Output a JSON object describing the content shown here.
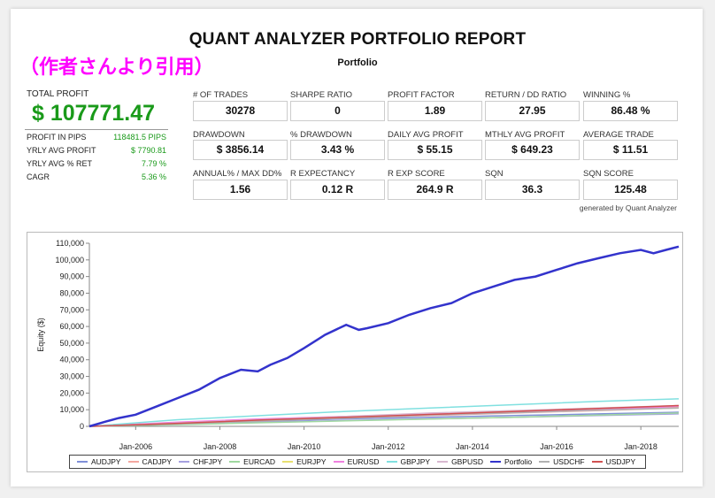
{
  "header": {
    "title": "QUANT ANALYZER PORTFOLIO REPORT",
    "subtitle": "Portfolio",
    "quote_note": "（作者さんより引用）"
  },
  "summary": {
    "total_label": "TOTAL PROFIT",
    "total_value": "$ 107771.47",
    "rows": [
      {
        "label": "PROFIT IN PIPS",
        "value": "118481.5 PIPS"
      },
      {
        "label": "YRLY AVG PROFIT",
        "value": "$ 7790.81"
      },
      {
        "label": "YRLY AVG % RET",
        "value": "7.79 %"
      },
      {
        "label": "CAGR",
        "value": "5.36 %"
      }
    ]
  },
  "stats": [
    [
      {
        "label": "# OF TRADES",
        "value": "30278"
      },
      {
        "label": "SHARPE RATIO",
        "value": "0"
      },
      {
        "label": "PROFIT FACTOR",
        "value": "1.89"
      },
      {
        "label": "RETURN / DD RATIO",
        "value": "27.95"
      },
      {
        "label": "WINNING %",
        "value": "86.48 %"
      }
    ],
    [
      {
        "label": "DRAWDOWN",
        "value": "$ 3856.14"
      },
      {
        "label": "% DRAWDOWN",
        "value": "3.43 %"
      },
      {
        "label": "DAILY AVG PROFIT",
        "value": "$ 55.15"
      },
      {
        "label": "MTHLY AVG PROFIT",
        "value": "$ 649.23"
      },
      {
        "label": "AVERAGE TRADE",
        "value": "$ 11.51"
      }
    ],
    [
      {
        "label": "ANNUAL% / MAX DD%",
        "value": "1.56"
      },
      {
        "label": "R EXPECTANCY",
        "value": "0.12 R"
      },
      {
        "label": "R EXP SCORE",
        "value": "264.9 R"
      },
      {
        "label": "SQN",
        "value": "36.3"
      },
      {
        "label": "SQN SCORE",
        "value": "125.48"
      }
    ]
  ],
  "generated_by": "generated by Quant Analyzer",
  "chart_data": {
    "type": "line",
    "ylabel": "Equity ($)",
    "xlabel": "",
    "ylim": [
      0,
      110000
    ],
    "xlim": [
      2004.9,
      2018.9
    ],
    "y_ticks": [
      0,
      10000,
      20000,
      30000,
      40000,
      50000,
      60000,
      70000,
      80000,
      90000,
      100000,
      110000
    ],
    "y_tick_labels": [
      "0",
      "10,000",
      "20,000",
      "30,000",
      "40,000",
      "50,000",
      "60,000",
      "70,000",
      "80,000",
      "90,000",
      "100,000",
      "110,000"
    ],
    "x_ticks": [
      2006,
      2008,
      2010,
      2012,
      2014,
      2016,
      2018
    ],
    "x_tick_labels": [
      "Jan-2006",
      "Jan-2008",
      "Jan-2010",
      "Jan-2012",
      "Jan-2014",
      "Jan-2016",
      "Jan-2018"
    ],
    "grid": false,
    "legend_position": "bottom",
    "series": [
      {
        "name": "AUDJPY",
        "color": "#7f8fd8",
        "x": [
          2004.9,
          2007,
          2009,
          2011,
          2013,
          2015,
          2017,
          2018.9
        ],
        "y": [
          0,
          1500,
          3000,
          4500,
          5500,
          6500,
          7500,
          8500
        ]
      },
      {
        "name": "CADJPY",
        "color": "#f4a7a0",
        "x": [
          2004.9,
          2007,
          2009,
          2011,
          2013,
          2015,
          2017,
          2018.9
        ],
        "y": [
          0,
          1800,
          3500,
          5000,
          6500,
          8000,
          9500,
          11000
        ]
      },
      {
        "name": "CHFJPY",
        "color": "#a5a0e0",
        "x": [
          2004.9,
          2007,
          2009,
          2011,
          2013,
          2015,
          2017,
          2018.9
        ],
        "y": [
          0,
          1200,
          2500,
          3500,
          4500,
          5500,
          6500,
          7500
        ]
      },
      {
        "name": "EURCAD",
        "color": "#9fd89f",
        "x": [
          2004.9,
          2007,
          2009,
          2011,
          2013,
          2015,
          2017,
          2018.9
        ],
        "y": [
          0,
          1000,
          2200,
          3300,
          4400,
          5500,
          6800,
          8000
        ]
      },
      {
        "name": "EURJPY",
        "color": "#e8e070",
        "x": [
          2004.9,
          2007,
          2009,
          2011,
          2013,
          2015,
          2017,
          2018.9
        ],
        "y": [
          0,
          2000,
          4000,
          5500,
          7000,
          8500,
          10000,
          11500
        ]
      },
      {
        "name": "EURUSD",
        "color": "#f080e0",
        "x": [
          2004.9,
          2007,
          2009,
          2011,
          2013,
          2015,
          2017,
          2018.9
        ],
        "y": [
          0,
          2500,
          4500,
          6000,
          7500,
          8500,
          10000,
          12000
        ]
      },
      {
        "name": "GBPJPY",
        "color": "#80e0e0",
        "x": [
          2004.9,
          2007,
          2009,
          2011,
          2013,
          2015,
          2017,
          2018.9
        ],
        "y": [
          0,
          4000,
          6500,
          9000,
          11000,
          13000,
          15000,
          16500
        ]
      },
      {
        "name": "GBPUSD",
        "color": "#d8b8d0",
        "x": [
          2004.9,
          2007,
          2009,
          2011,
          2013,
          2015,
          2017,
          2018.9
        ],
        "y": [
          0,
          2000,
          4000,
          6000,
          8000,
          9500,
          11000,
          12500
        ]
      },
      {
        "name": "Portfolio",
        "color": "#3333cc",
        "x": [
          2004.9,
          2005.3,
          2005.6,
          2006,
          2006.5,
          2007,
          2007.5,
          2008,
          2008.5,
          2008.9,
          2009.2,
          2009.6,
          2010,
          2010.5,
          2011,
          2011.3,
          2011.5,
          2012,
          2012.5,
          2013,
          2013.5,
          2014,
          2014.5,
          2015,
          2015.5,
          2016,
          2016.5,
          2017,
          2017.5,
          2018,
          2018.3,
          2018.6,
          2018.9
        ],
        "y": [
          0,
          3000,
          5000,
          7000,
          12000,
          17000,
          22000,
          29000,
          34000,
          33000,
          37000,
          41000,
          47000,
          55000,
          61000,
          58000,
          59000,
          62000,
          67000,
          71000,
          74000,
          80000,
          84000,
          88000,
          90000,
          94000,
          98000,
          101000,
          104000,
          106000,
          104000,
          106000,
          108000
        ]
      },
      {
        "name": "USDCHF",
        "color": "#b0b0b0",
        "x": [
          2004.9,
          2007,
          2009,
          2011,
          2013,
          2015,
          2017,
          2018.9
        ],
        "y": [
          0,
          1500,
          3200,
          5000,
          6800,
          8200,
          9800,
          11000
        ]
      },
      {
        "name": "USDJPY",
        "color": "#d05050",
        "x": [
          2004.9,
          2007,
          2009,
          2011,
          2013,
          2015,
          2017,
          2018.9
        ],
        "y": [
          0,
          1800,
          3800,
          5500,
          7200,
          9000,
          10800,
          12500
        ]
      }
    ]
  }
}
